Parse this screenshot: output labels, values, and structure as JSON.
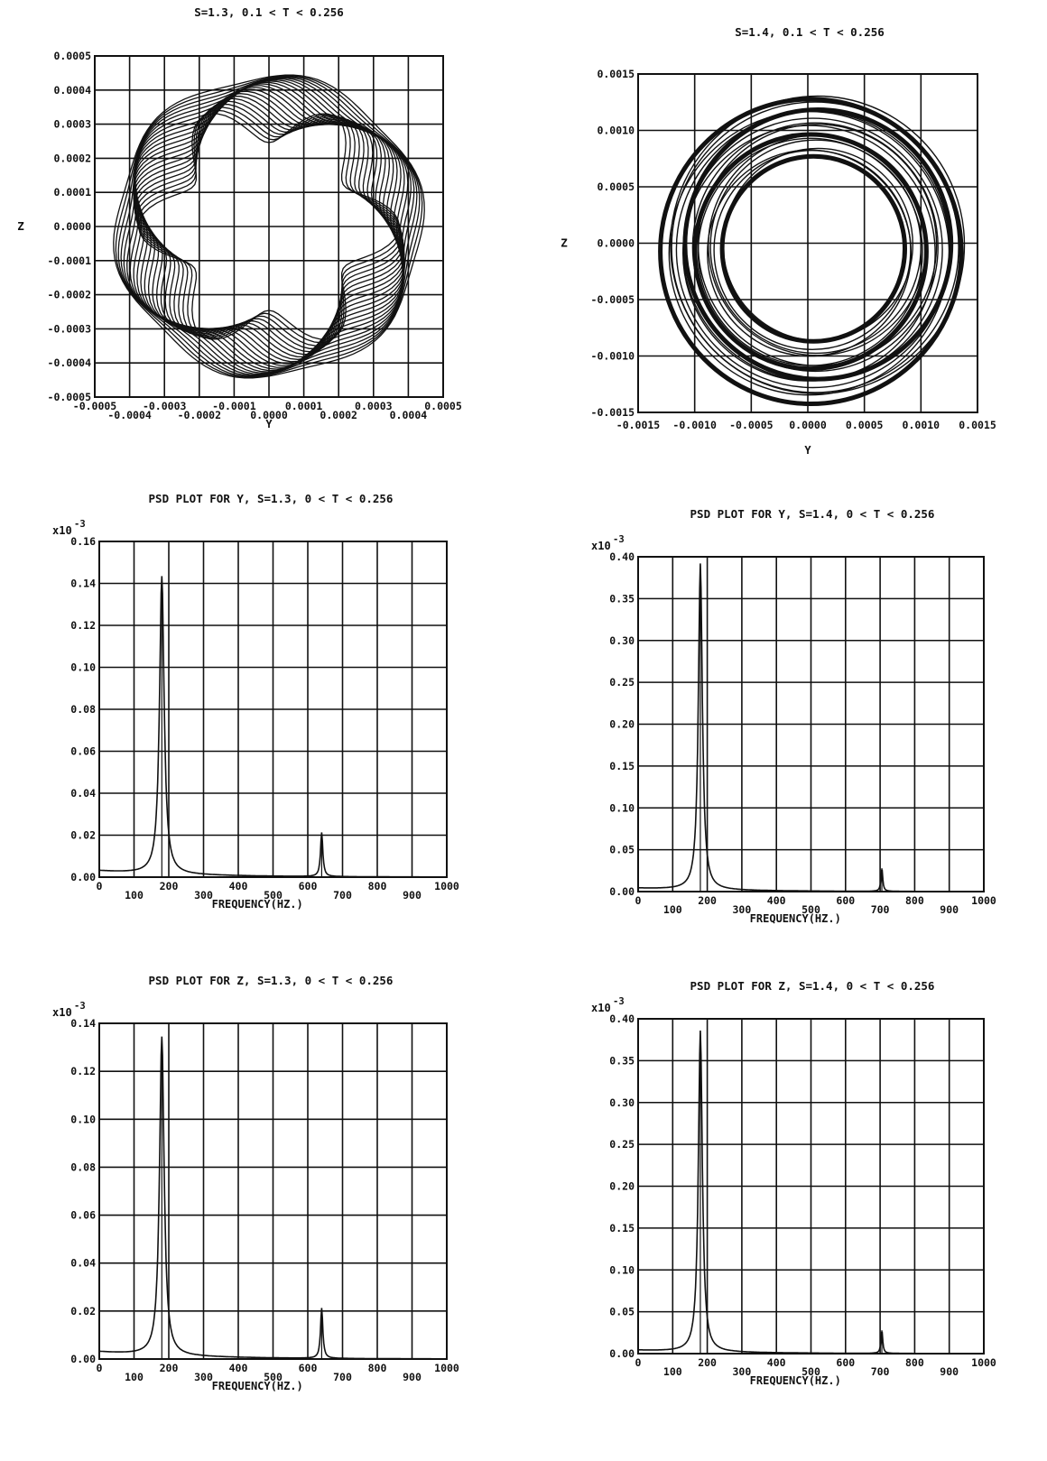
{
  "chart_data": [
    {
      "type": "line",
      "title": "S=1.3, 0.1 < T < 0.256",
      "xlabel": "Y",
      "ylabel": "Z",
      "xlim": [
        -0.0005,
        0.0005
      ],
      "ylim": [
        -0.0005,
        0.0005
      ],
      "grid": true,
      "x_ticks_upper": [
        "-0.0005",
        "-0.0003",
        "-0.0001",
        "0.0001",
        "0.0003",
        "0.0005"
      ],
      "x_ticks_lower": [
        "-0.0004",
        "-0.0002",
        "0.0000",
        "0.0002",
        "0.0004"
      ],
      "y_ticks": [
        "0.0005",
        "0.0004",
        "0.0003",
        "0.0002",
        "0.0001",
        "0.0000",
        "-0.0001",
        "-0.0002",
        "-0.0003",
        "-0.0004",
        "-0.0005"
      ],
      "orbit": {
        "outer_radius": 0.00044,
        "inner_radius": 0.00024,
        "lobes": 6,
        "center": [
          0.0,
          0.0
        ]
      }
    },
    {
      "type": "line",
      "title": "S=1.4, 0.1 < T < 0.256",
      "xlabel": "Y",
      "ylabel": "Z",
      "xlim": [
        -0.0015,
        0.0015
      ],
      "ylim": [
        -0.0015,
        0.0015
      ],
      "grid": true,
      "x_ticks": [
        "-0.0015",
        "-0.0010",
        "-0.0005",
        "0.0000",
        "0.0005",
        "0.0010",
        "0.0015"
      ],
      "y_ticks": [
        "0.0015",
        "0.0010",
        "0.0005",
        "0.0000",
        "-0.0005",
        "-0.0010",
        "-0.0015"
      ],
      "orbit": {
        "outer_radius": 0.00135,
        "inner_radius": 0.00082,
        "center": [
          5e-05,
          -5e-05
        ]
      }
    },
    {
      "type": "line",
      "title": "PSD PLOT FOR Y, S=1.3, 0 < T < 0.256",
      "xlabel": "FREQUENCY(HZ.)",
      "ylabel": "",
      "y_multiplier": "x10",
      "y_exponent": "-3",
      "xlim": [
        0,
        1000
      ],
      "ylim": [
        0,
        0.16
      ],
      "grid": true,
      "x_ticks_upper": [
        "0",
        "200",
        "400",
        "600",
        "800",
        "1000"
      ],
      "x_ticks_lower": [
        "100",
        "300",
        "500",
        "700",
        "900"
      ],
      "y_ticks": [
        "0.16",
        "0.14",
        "0.12",
        "0.10",
        "0.08",
        "0.06",
        "0.04",
        "0.02",
        "0.00"
      ],
      "baseline": 0.003,
      "peaks": [
        {
          "x": 180,
          "y": 0.142,
          "width": 8
        },
        {
          "x": 640,
          "y": 0.021,
          "width": 4
        }
      ]
    },
    {
      "type": "line",
      "title": "PSD PLOT FOR Y, S=1.4, 0 < T < 0.256",
      "xlabel": "FREQUENCY(HZ.)",
      "ylabel": "",
      "y_multiplier": "x10",
      "y_exponent": "-3",
      "xlim": [
        0,
        1000
      ],
      "ylim": [
        0,
        0.4
      ],
      "grid": true,
      "x_ticks_upper": [
        "0",
        "200",
        "400",
        "600",
        "800",
        "1000"
      ],
      "x_ticks_lower": [
        "100",
        "300",
        "500",
        "700",
        "900"
      ],
      "y_ticks": [
        "0.40",
        "0.35",
        "0.30",
        "0.25",
        "0.20",
        "0.15",
        "0.10",
        "0.05",
        "0.00"
      ],
      "baseline": 0.004,
      "peaks": [
        {
          "x": 180,
          "y": 0.39,
          "width": 7
        },
        {
          "x": 705,
          "y": 0.028,
          "width": 3
        }
      ]
    },
    {
      "type": "line",
      "title": "PSD PLOT FOR Z, S=1.3, 0 < T < 0.256",
      "xlabel": "FREQUENCY(HZ.)",
      "ylabel": "",
      "y_multiplier": "x10",
      "y_exponent": "-3",
      "xlim": [
        0,
        1000
      ],
      "ylim": [
        0,
        0.14
      ],
      "grid": true,
      "x_ticks_upper": [
        "0",
        "200",
        "400",
        "600",
        "800",
        "1000"
      ],
      "x_ticks_lower": [
        "100",
        "300",
        "500",
        "700",
        "900"
      ],
      "y_ticks": [
        "0.14",
        "0.12",
        "0.10",
        "0.08",
        "0.06",
        "0.04",
        "0.02",
        "0.00"
      ],
      "baseline": 0.003,
      "peaks": [
        {
          "x": 180,
          "y": 0.133,
          "width": 8
        },
        {
          "x": 640,
          "y": 0.021,
          "width": 4
        }
      ]
    },
    {
      "type": "line",
      "title": "PSD PLOT FOR Z, S=1.4, 0 < T < 0.256",
      "xlabel": "FREQUENCY(HZ.)",
      "ylabel": "",
      "y_multiplier": "x10",
      "y_exponent": "-3",
      "xlim": [
        0,
        1000
      ],
      "ylim": [
        0,
        0.4
      ],
      "grid": true,
      "x_ticks_upper": [
        "0",
        "200",
        "400",
        "600",
        "800",
        "1000"
      ],
      "x_ticks_lower": [
        "100",
        "300",
        "500",
        "700",
        "900"
      ],
      "y_ticks": [
        "0.40",
        "0.35",
        "0.30",
        "0.25",
        "0.20",
        "0.15",
        "0.10",
        "0.05",
        "0.00"
      ],
      "baseline": 0.004,
      "peaks": [
        {
          "x": 180,
          "y": 0.384,
          "width": 7
        },
        {
          "x": 705,
          "y": 0.028,
          "width": 3
        }
      ]
    }
  ]
}
